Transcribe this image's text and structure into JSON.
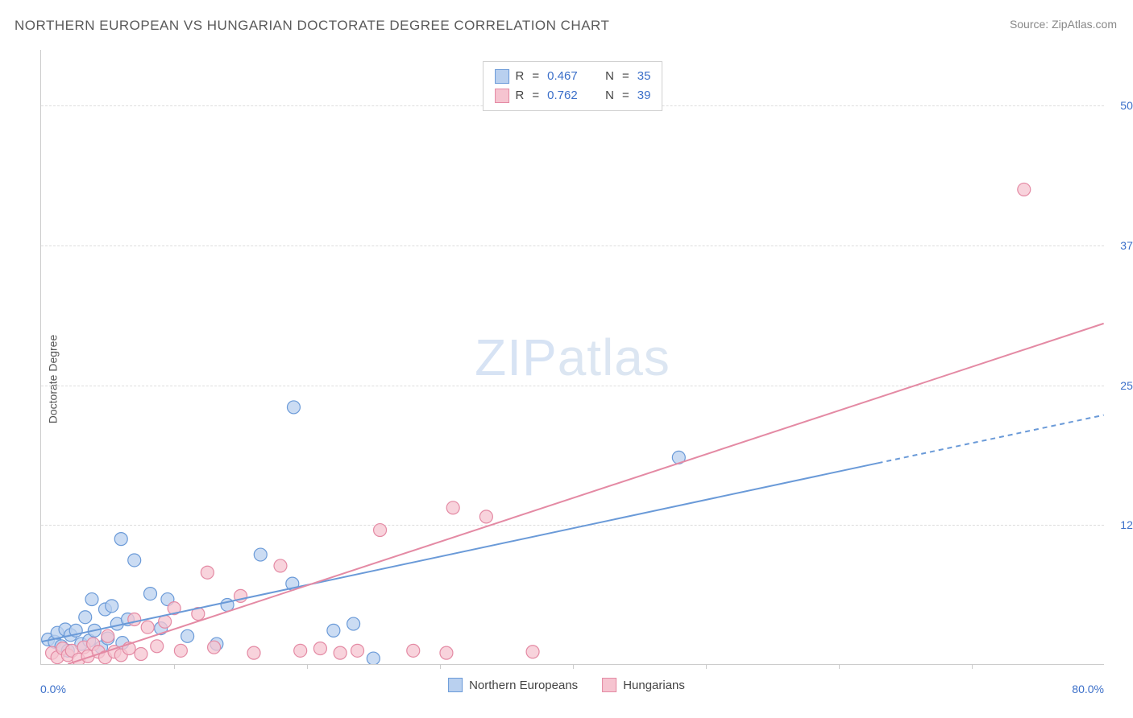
{
  "title": "NORTHERN EUROPEAN VS HUNGARIAN DOCTORATE DEGREE CORRELATION CHART",
  "source": "Source: ZipAtlas.com",
  "y_axis_label": "Doctorate Degree",
  "watermark_bold": "ZIP",
  "watermark_light": "atlas",
  "chart": {
    "type": "scatter",
    "xlim": [
      0,
      80
    ],
    "ylim": [
      0,
      55
    ],
    "x_min_label": "0.0%",
    "x_max_label": "80.0%",
    "y_ticks": [
      12.5,
      25.0,
      37.5,
      50.0
    ],
    "y_tick_labels": [
      "12.5%",
      "25.0%",
      "37.5%",
      "50.0%"
    ],
    "x_tick_step": 10,
    "background_color": "#ffffff",
    "grid_color": "#dddddd",
    "marker_radius": 8,
    "marker_stroke_width": 1.2,
    "trend_line_width": 2,
    "series": [
      {
        "name": "Northern Europeans",
        "fill": "#b9d0ef",
        "stroke": "#6a9ad8",
        "r_value": "0.467",
        "n_value": "35",
        "trend": {
          "x1": 0,
          "y1": 2.0,
          "x2": 63,
          "y2": 18.0,
          "dash_after_x": 63,
          "x2_ext": 80,
          "y2_ext": 22.3
        },
        "points": [
          [
            0.5,
            2.2
          ],
          [
            1.0,
            2.0
          ],
          [
            1.2,
            2.8
          ],
          [
            1.5,
            1.6
          ],
          [
            1.8,
            3.1
          ],
          [
            2.0,
            1.2
          ],
          [
            2.2,
            2.6
          ],
          [
            2.6,
            3.0
          ],
          [
            3.0,
            1.8
          ],
          [
            3.3,
            4.2
          ],
          [
            3.6,
            2.1
          ],
          [
            3.8,
            5.8
          ],
          [
            4.0,
            3.0
          ],
          [
            4.5,
            1.5
          ],
          [
            4.8,
            4.9
          ],
          [
            5.0,
            2.3
          ],
          [
            5.3,
            5.2
          ],
          [
            5.7,
            3.6
          ],
          [
            6.0,
            11.2
          ],
          [
            6.1,
            1.9
          ],
          [
            6.5,
            4.0
          ],
          [
            7.0,
            9.3
          ],
          [
            8.2,
            6.3
          ],
          [
            9.0,
            3.2
          ],
          [
            9.5,
            5.8
          ],
          [
            11.0,
            2.5
          ],
          [
            13.2,
            1.8
          ],
          [
            14.0,
            5.3
          ],
          [
            16.5,
            9.8
          ],
          [
            18.9,
            7.2
          ],
          [
            19.0,
            23.0
          ],
          [
            22.0,
            3.0
          ],
          [
            23.5,
            3.6
          ],
          [
            25.0,
            0.5
          ],
          [
            48.0,
            18.5
          ]
        ]
      },
      {
        "name": "Hungarians",
        "fill": "#f6c4d0",
        "stroke": "#e48aa4",
        "r_value": "0.762",
        "n_value": "39",
        "trend": {
          "x1": 2.0,
          "y1": 0.0,
          "x2": 80,
          "y2": 30.5
        },
        "points": [
          [
            0.8,
            1.0
          ],
          [
            1.2,
            0.6
          ],
          [
            1.6,
            1.4
          ],
          [
            2.0,
            0.8
          ],
          [
            2.3,
            1.2
          ],
          [
            2.8,
            0.4
          ],
          [
            3.2,
            1.5
          ],
          [
            3.5,
            0.7
          ],
          [
            3.9,
            1.8
          ],
          [
            4.3,
            1.1
          ],
          [
            4.8,
            0.6
          ],
          [
            5.0,
            2.5
          ],
          [
            5.5,
            1.1
          ],
          [
            6.0,
            0.8
          ],
          [
            6.6,
            1.4
          ],
          [
            7.0,
            4.0
          ],
          [
            7.5,
            0.9
          ],
          [
            8.0,
            3.3
          ],
          [
            8.7,
            1.6
          ],
          [
            9.3,
            3.8
          ],
          [
            10.0,
            5.0
          ],
          [
            10.5,
            1.2
          ],
          [
            11.8,
            4.5
          ],
          [
            12.5,
            8.2
          ],
          [
            13.0,
            1.5
          ],
          [
            15.0,
            6.1
          ],
          [
            16.0,
            1.0
          ],
          [
            18.0,
            8.8
          ],
          [
            19.5,
            1.2
          ],
          [
            21.0,
            1.4
          ],
          [
            22.5,
            1.0
          ],
          [
            23.8,
            1.2
          ],
          [
            25.5,
            12.0
          ],
          [
            28.0,
            1.2
          ],
          [
            30.5,
            1.0
          ],
          [
            31.0,
            14.0
          ],
          [
            33.5,
            13.2
          ],
          [
            37.0,
            1.1
          ],
          [
            74.0,
            42.5
          ]
        ]
      }
    ]
  },
  "legend_bottom": [
    {
      "label": "Northern Europeans",
      "fill": "#b9d0ef",
      "stroke": "#6a9ad8"
    },
    {
      "label": "Hungarians",
      "fill": "#f6c4d0",
      "stroke": "#e48aa4"
    }
  ],
  "legend_stat_labels": {
    "r": "R",
    "n": "N",
    "eq": "="
  }
}
